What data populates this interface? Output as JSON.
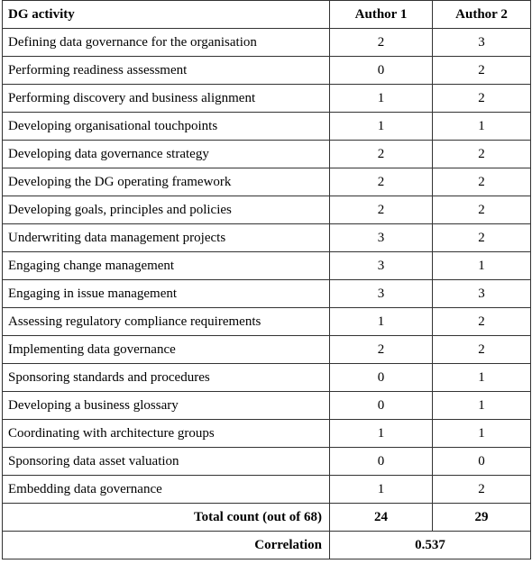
{
  "table": {
    "headers": {
      "activity": "DG activity",
      "author1": "Author 1",
      "author2": "Author 2"
    },
    "rows": [
      {
        "activity": "Defining data governance for the organisation",
        "author1": "2",
        "author2": "3"
      },
      {
        "activity": "Performing readiness assessment",
        "author1": "0",
        "author2": "2"
      },
      {
        "activity": "Performing discovery and business alignment",
        "author1": "1",
        "author2": "2"
      },
      {
        "activity": "Developing organisational touchpoints",
        "author1": "1",
        "author2": "1"
      },
      {
        "activity": "Developing data governance strategy",
        "author1": "2",
        "author2": "2"
      },
      {
        "activity": "Developing the DG operating framework",
        "author1": "2",
        "author2": "2"
      },
      {
        "activity": "Developing goals, principles and policies",
        "author1": "2",
        "author2": "2"
      },
      {
        "activity": "Underwriting data management projects",
        "author1": "3",
        "author2": "2"
      },
      {
        "activity": "Engaging change management",
        "author1": "3",
        "author2": "1"
      },
      {
        "activity": "Engaging in issue management",
        "author1": "3",
        "author2": "3"
      },
      {
        "activity": "Assessing regulatory compliance requirements",
        "author1": "1",
        "author2": "2"
      },
      {
        "activity": "Implementing data governance",
        "author1": "2",
        "author2": "2"
      },
      {
        "activity": "Sponsoring standards and procedures",
        "author1": "0",
        "author2": "1"
      },
      {
        "activity": "Developing a business glossary",
        "author1": "0",
        "author2": "1"
      },
      {
        "activity": "Coordinating with architecture groups",
        "author1": "1",
        "author2": "1"
      },
      {
        "activity": "Sponsoring data asset valuation",
        "author1": "0",
        "author2": "0"
      },
      {
        "activity": "Embedding data governance",
        "author1": "1",
        "author2": "2"
      }
    ],
    "total": {
      "label": "Total count (out of 68)",
      "author1": "24",
      "author2": "29"
    },
    "correlation": {
      "label": "Correlation",
      "value": "0.537"
    }
  }
}
